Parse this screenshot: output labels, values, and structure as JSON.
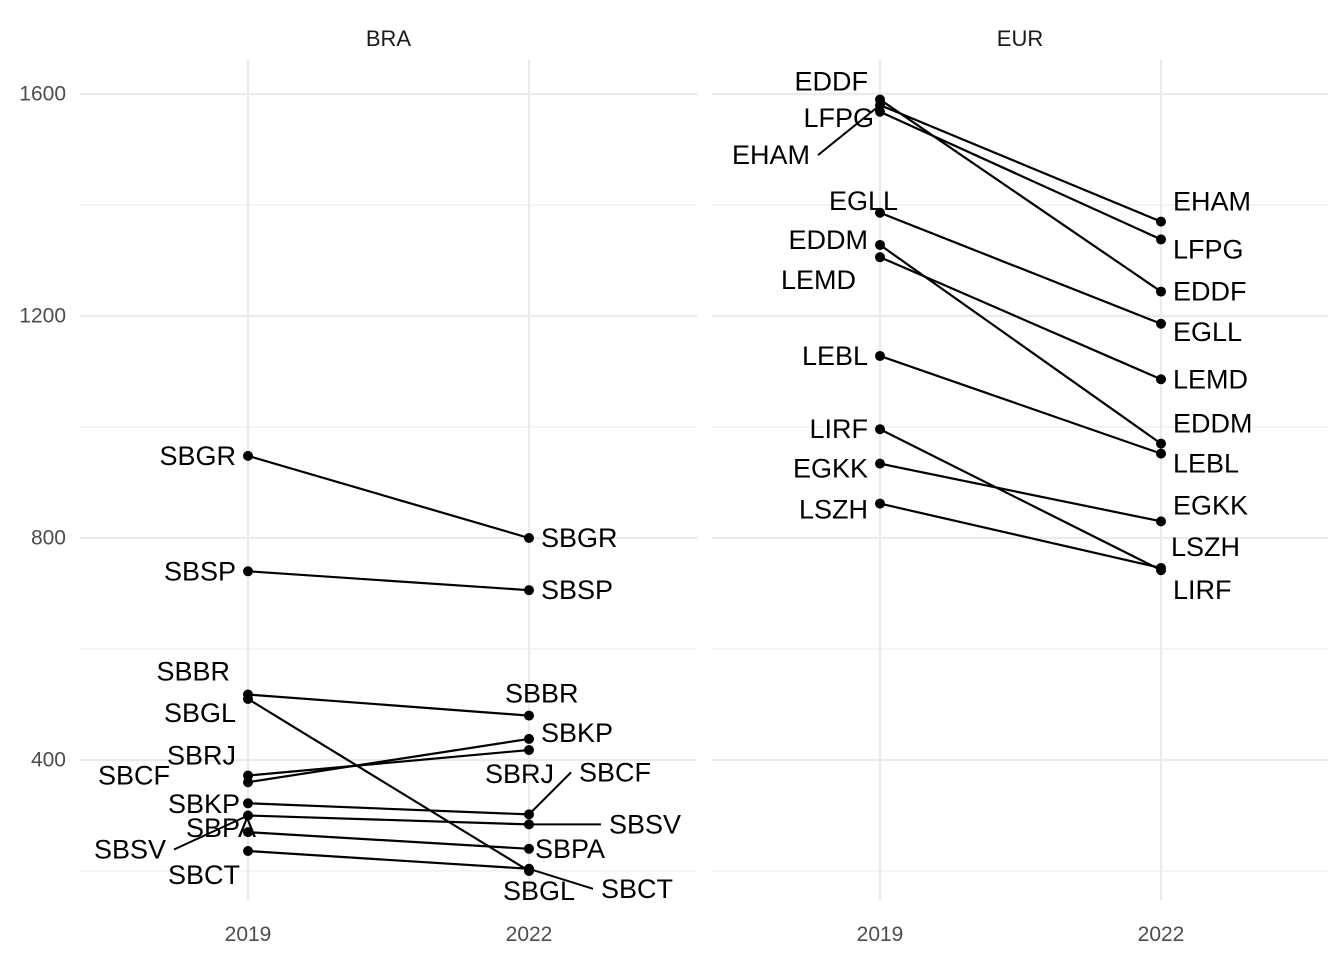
{
  "chart_data": {
    "type": "slope",
    "y_ticks": [
      400,
      800,
      1200,
      1600
    ],
    "ylim": [
      150,
      1665
    ],
    "x_categories": [
      "2019",
      "2022"
    ],
    "panels": [
      {
        "name": "BRA",
        "series": [
          {
            "name": "SBGR",
            "values": [
              948,
              800
            ]
          },
          {
            "name": "SBSP",
            "values": [
              740,
              706
            ]
          },
          {
            "name": "SBBR",
            "values": [
              518,
              480
            ]
          },
          {
            "name": "SBGL",
            "values": [
              510,
              200
            ]
          },
          {
            "name": "SBRJ",
            "values": [
              372,
              418
            ]
          },
          {
            "name": "SBKP",
            "values": [
              360,
              438
            ]
          },
          {
            "name": "SBCF",
            "values": [
              322,
              302
            ]
          },
          {
            "name": "SBSV",
            "values": [
              300,
              284
            ]
          },
          {
            "name": "SBPA",
            "values": [
              270,
              240
            ]
          },
          {
            "name": "SBCT",
            "values": [
              236,
              204
            ]
          }
        ]
      },
      {
        "name": "EUR",
        "series": [
          {
            "name": "EDDF",
            "values": [
              1590,
              1244
            ]
          },
          {
            "name": "LFPG",
            "values": [
              1568,
              1338
            ]
          },
          {
            "name": "EHAM",
            "values": [
              1580,
              1370
            ]
          },
          {
            "name": "EGLL",
            "values": [
              1386,
              1186
            ]
          },
          {
            "name": "EDDM",
            "values": [
              1328,
              970
            ]
          },
          {
            "name": "LEMD",
            "values": [
              1306,
              1086
            ]
          },
          {
            "name": "LEBL",
            "values": [
              1128,
              952
            ]
          },
          {
            "name": "LIRF",
            "values": [
              996,
              742
            ]
          },
          {
            "name": "EGKK",
            "values": [
              934,
              830
            ]
          },
          {
            "name": "LSZH",
            "values": [
              862,
              746
            ]
          }
        ]
      }
    ]
  }
}
